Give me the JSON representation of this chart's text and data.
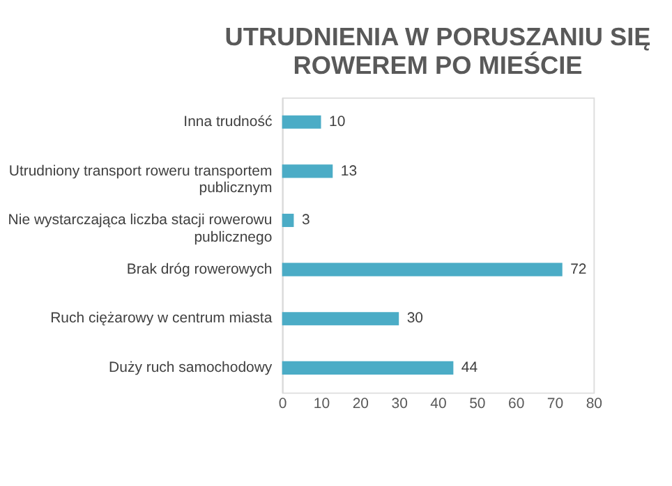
{
  "chart_data": {
    "type": "bar",
    "orientation": "horizontal",
    "title": "UTRUDNIENIA W PORUSZANIU SIĘ\nROWEREM PO MIEŚCIE",
    "categories": [
      "Inna trudność",
      "Utrudniony transport roweru transportem publicznym",
      "Nie wystarczająca liczba stacji rowerowu publicznego",
      "Brak dróg rowerowych",
      "Ruch ciężarowy w centrum miasta",
      "Duży ruch samochodowy"
    ],
    "values": [
      10,
      13,
      3,
      72,
      30,
      44
    ],
    "color": "#4bacc6",
    "xlim": [
      0,
      80
    ],
    "xticks": [
      0,
      10,
      20,
      30,
      40,
      50,
      60,
      70,
      80
    ],
    "data_labels": true,
    "grid": false
  }
}
